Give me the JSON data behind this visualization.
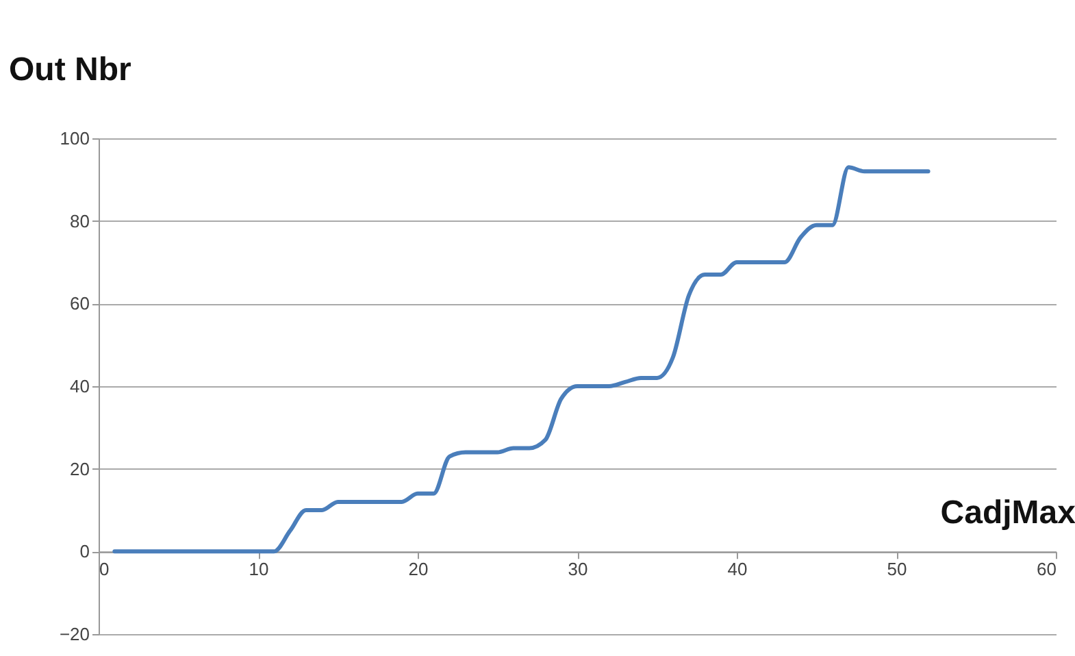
{
  "chart_data": {
    "type": "line",
    "xlabel": "CadjMax",
    "ylabel": "Out Nbr",
    "x": [
      1,
      5,
      10,
      11,
      12,
      13,
      14,
      15,
      16,
      19,
      20,
      21,
      22,
      23,
      25,
      26,
      27,
      28,
      29,
      30,
      31,
      32,
      33,
      34,
      35,
      36,
      37,
      38,
      39,
      40,
      42,
      43,
      44,
      45,
      46,
      47,
      48,
      52
    ],
    "series": [
      {
        "color": "#4a7ebb",
        "values": [
          0,
          0,
          0,
          0,
          5,
          10,
          10,
          12,
          12,
          12,
          14,
          14,
          23,
          24,
          24,
          25,
          25,
          27,
          37,
          40,
          40,
          40,
          41,
          42,
          42,
          47,
          62,
          67,
          67,
          70,
          70,
          70,
          76,
          79,
          79,
          93,
          92,
          92
        ]
      }
    ],
    "xlim": [
      0,
      60
    ],
    "xticks": [
      0,
      10,
      20,
      30,
      40,
      50,
      60
    ],
    "ylim": [
      -20,
      100
    ],
    "yticks": [
      -20,
      0,
      20,
      40,
      60,
      80,
      100
    ],
    "grid": "y",
    "marker": "none",
    "line_style": "solid"
  }
}
